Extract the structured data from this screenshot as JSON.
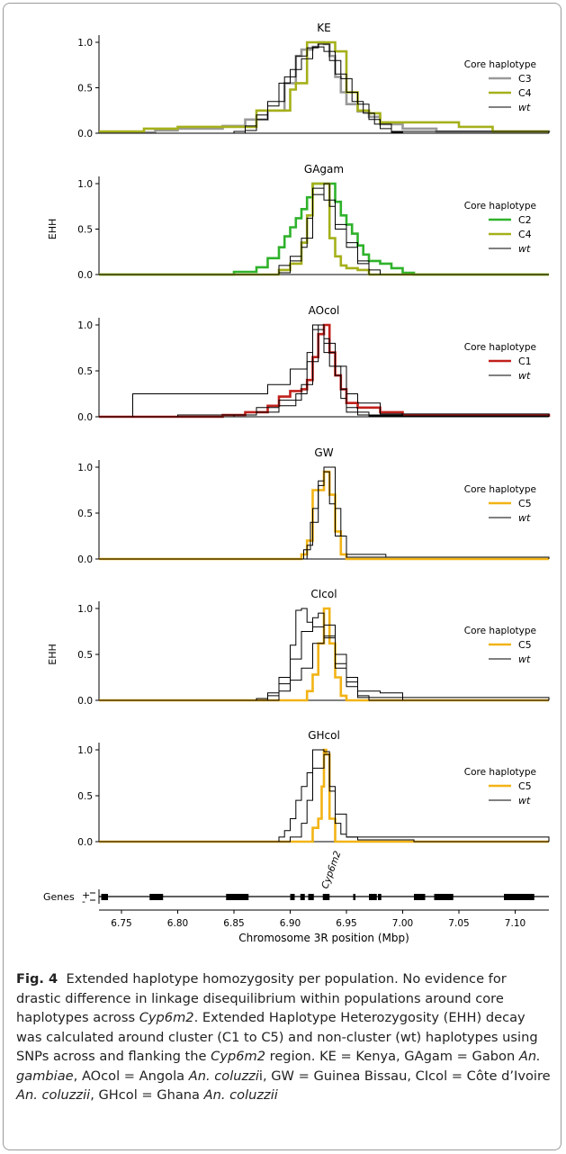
{
  "figure": {
    "ylabel": "EHH",
    "xlabel": "Chromosome 3R position (Mbp)",
    "xlim": [
      6.73,
      7.13
    ],
    "xticks": [
      "6.75",
      "6.80",
      "6.85",
      "6.90",
      "6.95",
      "7.00",
      "7.05",
      "7.10"
    ],
    "yticks": [
      "0.0",
      "0.5",
      "1.0"
    ],
    "legend_title": "Core haplotype",
    "genes_label": "Genes",
    "gene_strands": [
      "+",
      "-"
    ],
    "gene_name": "Cyp6m2",
    "colors": {
      "C1": "#c0201c",
      "C2": "#2fb22b",
      "C3": "#999999",
      "C4": "#a5b01a",
      "C5": "#f2b315",
      "wt": "#000000"
    }
  },
  "chart_data": [
    {
      "type": "line",
      "title": "KE",
      "ylim": [
        0,
        1
      ],
      "series": [
        {
          "name": "C3",
          "x": [
            6.73,
            6.78,
            6.8,
            6.84,
            6.86,
            6.88,
            6.895,
            6.905,
            6.91,
            6.92,
            6.925,
            6.93,
            6.935,
            6.94,
            6.945,
            6.95,
            6.96,
            6.97,
            6.98,
            7.0,
            7.03,
            7.13
          ],
          "y": [
            0.01,
            0.03,
            0.05,
            0.08,
            0.15,
            0.25,
            0.55,
            0.85,
            0.92,
            0.95,
            1.0,
            0.98,
            0.85,
            0.62,
            0.45,
            0.32,
            0.24,
            0.18,
            0.1,
            0.05,
            0.02,
            0.01
          ]
        },
        {
          "name": "C4",
          "x": [
            6.73,
            6.76,
            6.77,
            6.8,
            6.86,
            6.87,
            6.9,
            6.905,
            6.915,
            6.92,
            6.935,
            6.94,
            6.95,
            6.96,
            6.97,
            6.98,
            7.05,
            7.08,
            7.13
          ],
          "y": [
            0.02,
            0.02,
            0.05,
            0.07,
            0.07,
            0.25,
            0.48,
            0.55,
            1.0,
            1.0,
            1.0,
            0.9,
            0.45,
            0.25,
            0.22,
            0.12,
            0.07,
            0.02,
            0.02
          ]
        },
        {
          "name": "wt",
          "x": [
            6.73,
            6.85,
            6.86,
            6.87,
            6.88,
            6.89,
            6.9,
            6.91,
            6.92,
            6.93,
            6.94,
            6.95,
            6.96,
            6.97,
            6.98,
            6.99,
            7.0,
            7.13
          ],
          "y": [
            0.0,
            0.02,
            0.08,
            0.2,
            0.3,
            0.55,
            0.7,
            0.82,
            0.95,
            0.9,
            0.65,
            0.45,
            0.32,
            0.15,
            0.05,
            0.01,
            0.0,
            0.0
          ]
        },
        {
          "name": "",
          "x": [
            6.73,
            6.86,
            6.87,
            6.88,
            6.895,
            6.905,
            6.915,
            6.925,
            6.935,
            6.945,
            6.955,
            6.965,
            6.975,
            6.99,
            7.13
          ],
          "y": [
            0.0,
            0.03,
            0.15,
            0.35,
            0.62,
            0.85,
            0.94,
            0.98,
            0.8,
            0.6,
            0.35,
            0.22,
            0.1,
            0.02,
            0.0
          ]
        }
      ]
    },
    {
      "type": "line",
      "title": "GAgam",
      "ylim": [
        0,
        1
      ],
      "series": [
        {
          "name": "C2",
          "x": [
            6.73,
            6.83,
            6.85,
            6.87,
            6.88,
            6.89,
            6.895,
            6.9,
            6.905,
            6.91,
            6.915,
            6.92,
            6.925,
            6.935,
            6.94,
            6.945,
            6.95,
            6.955,
            6.96,
            6.965,
            6.97,
            6.98,
            6.99,
            7.0,
            7.01,
            7.13
          ],
          "y": [
            0.0,
            0.0,
            0.03,
            0.08,
            0.18,
            0.3,
            0.42,
            0.52,
            0.62,
            0.72,
            0.85,
            1.0,
            1.0,
            1.0,
            0.8,
            0.65,
            0.55,
            0.45,
            0.32,
            0.22,
            0.15,
            0.12,
            0.07,
            0.02,
            0.0,
            0.0
          ]
        },
        {
          "name": "C4",
          "x": [
            6.73,
            6.88,
            6.89,
            6.9,
            6.91,
            6.915,
            6.92,
            6.93,
            6.935,
            6.94,
            6.945,
            6.95,
            6.96,
            6.97,
            7.13
          ],
          "y": [
            0.0,
            0.0,
            0.05,
            0.12,
            0.35,
            0.65,
            1.0,
            1.0,
            0.4,
            0.2,
            0.1,
            0.07,
            0.05,
            0.0,
            0.0
          ]
        },
        {
          "name": "wt",
          "x": [
            6.73,
            6.88,
            6.89,
            6.9,
            6.91,
            6.92,
            6.93,
            6.935,
            6.94,
            6.95,
            6.96,
            6.97,
            7.13
          ],
          "y": [
            0.0,
            0.0,
            0.1,
            0.2,
            0.4,
            0.88,
            1.0,
            0.75,
            0.55,
            0.35,
            0.12,
            0.0,
            0.0
          ]
        },
        {
          "name": "",
          "x": [
            6.73,
            6.89,
            6.9,
            6.91,
            6.915,
            6.92,
            6.93,
            6.94,
            6.95,
            6.96,
            6.97,
            6.98,
            7.13
          ],
          "y": [
            0.0,
            0.02,
            0.15,
            0.3,
            0.62,
            0.95,
            0.82,
            0.5,
            0.3,
            0.15,
            0.05,
            0.0,
            0.0
          ]
        }
      ]
    },
    {
      "type": "line",
      "title": "AOcol",
      "ylim": [
        0,
        1
      ],
      "series": [
        {
          "name": "C1",
          "x": [
            6.73,
            6.84,
            6.86,
            6.88,
            6.89,
            6.9,
            6.91,
            6.915,
            6.92,
            6.925,
            6.93,
            6.935,
            6.94,
            6.945,
            6.95,
            6.96,
            6.98,
            7.0,
            7.13
          ],
          "y": [
            0.0,
            0.02,
            0.05,
            0.12,
            0.22,
            0.28,
            0.3,
            0.4,
            0.65,
            0.9,
            1.0,
            0.7,
            0.45,
            0.3,
            0.15,
            0.1,
            0.05,
            0.02,
            0.0
          ]
        },
        {
          "name": "wt",
          "x": [
            6.73,
            6.76,
            6.84,
            6.88,
            6.9,
            6.915,
            6.92,
            6.925,
            6.93,
            6.94,
            6.945,
            6.95,
            6.96,
            6.98,
            7.0,
            7.13
          ],
          "y": [
            0.0,
            0.25,
            0.25,
            0.35,
            0.52,
            0.7,
            1.0,
            1.0,
            0.7,
            0.45,
            0.3,
            0.1,
            0.02,
            0.02,
            0.0,
            0.0
          ]
        },
        {
          "name": "",
          "x": [
            6.73,
            6.8,
            6.87,
            6.89,
            6.905,
            6.915,
            6.92,
            6.93,
            6.935,
            6.945,
            6.95,
            6.97,
            7.13
          ],
          "y": [
            0.0,
            0.02,
            0.05,
            0.12,
            0.25,
            0.6,
            0.95,
            0.85,
            0.55,
            0.2,
            0.05,
            0.01,
            0.0
          ]
        },
        {
          "name": "",
          "x": [
            6.73,
            6.85,
            6.87,
            6.89,
            6.91,
            6.92,
            6.925,
            6.93,
            6.94,
            6.95,
            6.96,
            6.98,
            7.13
          ],
          "y": [
            0.0,
            0.02,
            0.1,
            0.18,
            0.35,
            0.6,
            1.0,
            0.8,
            0.55,
            0.25,
            0.15,
            0.03,
            0.0
          ]
        }
      ]
    },
    {
      "type": "line",
      "title": "GW",
      "ylim": [
        0,
        1
      ],
      "series": [
        {
          "name": "C5",
          "x": [
            6.73,
            6.9,
            6.91,
            6.915,
            6.92,
            6.925,
            6.93,
            6.935,
            6.94,
            6.945,
            6.95,
            7.13
          ],
          "y": [
            0.0,
            0.0,
            0.05,
            0.2,
            0.75,
            0.75,
            0.95,
            0.7,
            0.3,
            0.05,
            0.0,
            0.0
          ]
        },
        {
          "name": "wt",
          "x": [
            6.73,
            6.91,
            6.915,
            6.92,
            6.925,
            6.93,
            6.935,
            6.94,
            6.945,
            6.95,
            6.985,
            7.13
          ],
          "y": [
            0.0,
            0.0,
            0.15,
            0.55,
            0.8,
            1.0,
            1.0,
            0.55,
            0.25,
            0.05,
            0.02,
            0.0
          ]
        },
        {
          "name": "",
          "x": [
            6.73,
            6.905,
            6.912,
            6.918,
            6.925,
            6.93,
            6.935,
            6.94,
            6.95,
            7.13
          ],
          "y": [
            0.0,
            0.0,
            0.1,
            0.4,
            0.85,
            0.95,
            0.6,
            0.25,
            0.02,
            0.0
          ]
        }
      ]
    },
    {
      "type": "line",
      "title": "CIcol",
      "ylim": [
        0,
        1
      ],
      "series": [
        {
          "name": "C5",
          "x": [
            6.73,
            6.91,
            6.915,
            6.92,
            6.925,
            6.93,
            6.935,
            6.94,
            6.945,
            6.95,
            7.13
          ],
          "y": [
            0.0,
            0.0,
            0.1,
            0.28,
            0.62,
            1.0,
            0.62,
            0.25,
            0.05,
            0.0,
            0.0
          ]
        },
        {
          "name": "wt",
          "x": [
            6.73,
            6.87,
            6.88,
            6.89,
            6.9,
            6.905,
            6.91,
            6.915,
            6.92,
            6.93,
            6.94,
            6.95,
            6.96,
            6.98,
            7.0,
            7.13
          ],
          "y": [
            0.0,
            0.02,
            0.08,
            0.25,
            0.6,
            0.98,
            1.0,
            0.85,
            0.8,
            0.7,
            0.4,
            0.25,
            0.1,
            0.08,
            0.0,
            0.0
          ]
        },
        {
          "name": "",
          "x": [
            6.73,
            6.88,
            6.89,
            6.9,
            6.91,
            6.92,
            6.925,
            6.93,
            6.94,
            6.95,
            6.96,
            6.97,
            7.13
          ],
          "y": [
            0.0,
            0.05,
            0.18,
            0.45,
            0.75,
            0.9,
            0.95,
            0.68,
            0.35,
            0.15,
            0.05,
            0.0,
            0.0
          ]
        },
        {
          "name": "",
          "x": [
            6.73,
            6.89,
            6.9,
            6.91,
            6.92,
            6.93,
            6.94,
            6.95,
            6.96,
            7.13
          ],
          "y": [
            0.0,
            0.1,
            0.22,
            0.35,
            0.62,
            0.82,
            0.5,
            0.2,
            0.03,
            0.0
          ]
        }
      ]
    },
    {
      "type": "line",
      "title": "GHcol",
      "ylim": [
        0,
        1
      ],
      "series": [
        {
          "name": "C5",
          "x": [
            6.73,
            6.915,
            6.92,
            6.925,
            6.928,
            6.93,
            6.932,
            6.935,
            6.94,
            7.13
          ],
          "y": [
            0.0,
            0.0,
            0.15,
            0.25,
            0.6,
            1.0,
            0.95,
            0.25,
            0.0,
            0.0
          ]
        },
        {
          "name": "wt",
          "x": [
            6.73,
            6.885,
            6.89,
            6.895,
            6.9,
            6.905,
            6.91,
            6.915,
            6.92,
            6.93,
            6.935,
            6.94,
            6.945,
            6.95,
            6.96,
            7.01,
            7.13
          ],
          "y": [
            0.0,
            0.0,
            0.05,
            0.12,
            0.25,
            0.45,
            0.6,
            0.75,
            1.0,
            0.98,
            0.55,
            0.2,
            0.08,
            0.05,
            0.02,
            0.0,
            0.0
          ]
        },
        {
          "name": "",
          "x": [
            6.73,
            6.9,
            6.91,
            6.915,
            6.92,
            6.93,
            6.935,
            6.94,
            6.95,
            7.13
          ],
          "y": [
            0.0,
            0.05,
            0.2,
            0.45,
            0.8,
            0.95,
            0.6,
            0.3,
            0.05,
            0.0
          ]
        }
      ]
    }
  ],
  "genes_track": {
    "blocks": [
      [
        6.732,
        6.738
      ],
      [
        6.775,
        6.787
      ],
      [
        6.843,
        6.863
      ],
      [
        6.9,
        6.904
      ],
      [
        6.909,
        6.913
      ],
      [
        6.916,
        6.921
      ],
      [
        6.929,
        6.935
      ],
      [
        6.956,
        6.958
      ],
      [
        6.97,
        6.977
      ],
      [
        6.978,
        6.981
      ],
      [
        7.01,
        7.02
      ],
      [
        7.028,
        7.045
      ],
      [
        7.09,
        7.117
      ]
    ]
  },
  "caption": {
    "fig_label": "Fig. 4",
    "t1": "Extended haplotype homozygosity per population. No evidence for drastic difference in linkage disequilibrium within populations around core haplotypes across ",
    "g1": "Cyp6m2",
    "t2": ". Extended Haplotype Heterozygosity (EHH) decay was calculated around cluster (C1 to C5) and non-cluster (wt) haplotypes using SNPs across and flanking the ",
    "g2": "Cyp6m2",
    "t3": " region. KE = Kenya, GAgam = Gabon ",
    "s1": "An. gambiae",
    "t4": ", AOcol = Angola ",
    "s2": "An. coluzzi",
    "t5": "i, GW = Guinea Bissau, CIcol = Côte d’Ivoire ",
    "s3": "An. coluzzii",
    "t6": ", GHcol = Ghana ",
    "s4": "An. coluzzii"
  }
}
